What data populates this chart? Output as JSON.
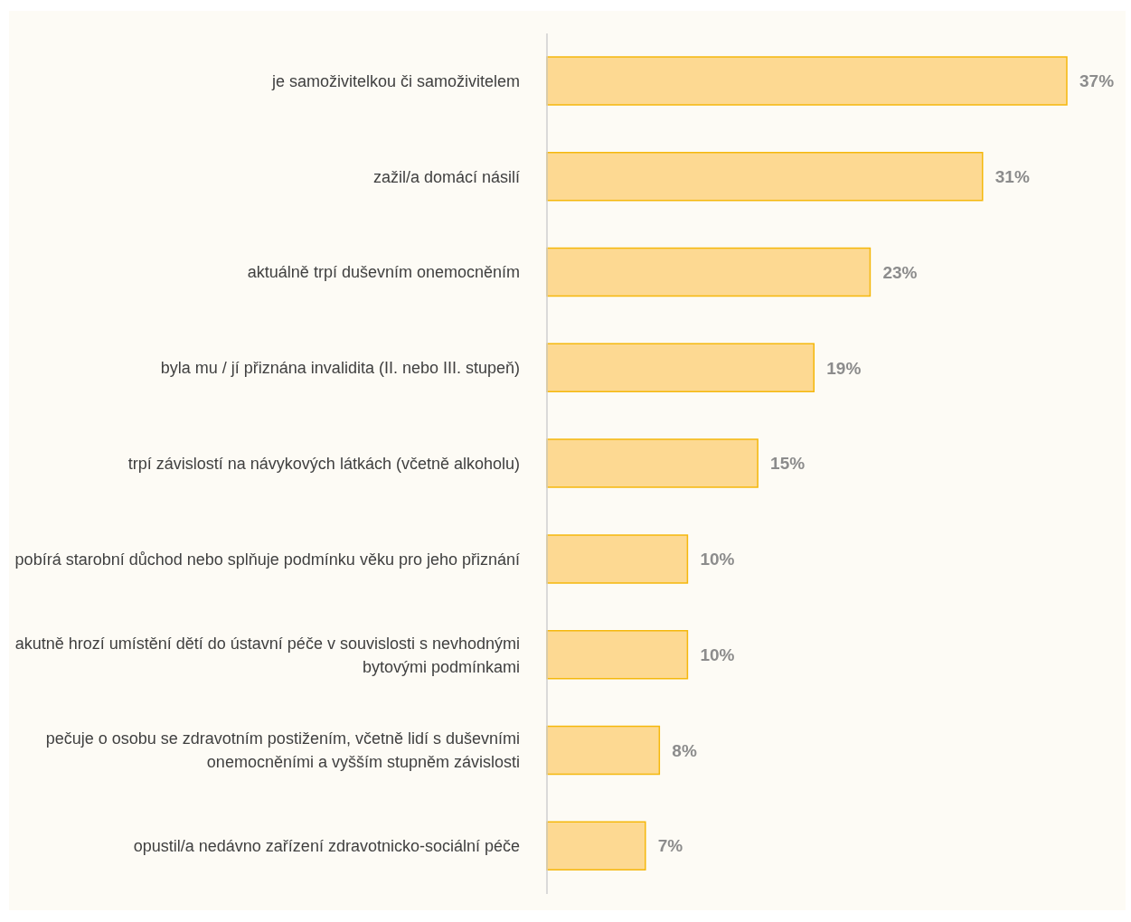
{
  "chart_data": {
    "type": "bar",
    "orientation": "horizontal",
    "categories": [
      "je samoživitelkou či samoživitelem",
      "zažil/a domácí násilí",
      "aktuálně trpí duševním onemocněním",
      "byla mu / jí přiznána invalidita (II. nebo III. stupeň)",
      "trpí závislostí na návykových látkách (včetně alkoholu)",
      "pobírá starobní důchod nebo splňuje podmínku věku pro jeho přiznání",
      "akutně hrozí umístění dětí do ústavní péče v souvislosti s nevhodnými bytovými podmínkami",
      "pečuje o osobu se zdravotním postižením, včetně lidí s duševními onemocněními a vyšším stupněm závislosti",
      "opustil/a nedávno zařízení zdravotnicko-sociální péče"
    ],
    "values": [
      37,
      31,
      23,
      19,
      15,
      10,
      10,
      8,
      7
    ],
    "value_labels": [
      "37%",
      "31%",
      "23%",
      "19%",
      "15%",
      "10%",
      "10%",
      "8%",
      "7%"
    ],
    "color": "#fdd992"
  }
}
